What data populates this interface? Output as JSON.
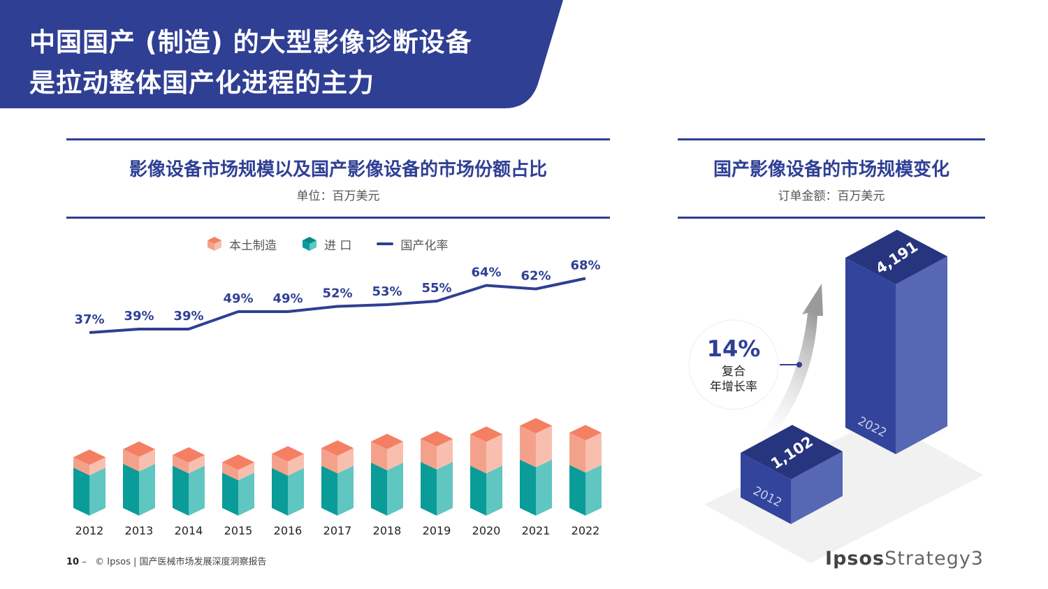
{
  "header": {
    "title_line1": "中国国产 (制造) 的大型影像诊断设备",
    "title_line2": "是拉动整体国产化进程的主力"
  },
  "left_panel": {
    "title": "影像设备市场规模以及国产影像设备的市场份额占比",
    "subtitle": "单位：百万美元"
  },
  "right_panel": {
    "title": "国产影像设备的市场规模变化",
    "subtitle": "订单金额：百万美元"
  },
  "legend": {
    "domestic": "本土制造",
    "import": "进 口",
    "rate": "国产化率"
  },
  "colors": {
    "brand_blue": "#2f3f94",
    "domestic_front": "#f4a18b",
    "domestic_side": "#f9bfae",
    "domestic_top": "#f47f63",
    "import_front": "#0a9c98",
    "import_side": "#5fc6c2",
    "line": "#2f3f94"
  },
  "chart_data": [
    {
      "type": "bar",
      "stacked": true,
      "categories": [
        "2012",
        "2013",
        "2014",
        "2015",
        "2016",
        "2017",
        "2018",
        "2019",
        "2020",
        "2021",
        "2022"
      ],
      "series": [
        {
          "name": "进 口",
          "values": [
            105,
            115,
            110,
            92,
            104,
            110,
            118,
            120,
            110,
            126,
            112
          ]
        },
        {
          "name": "本土制造",
          "values": [
            27,
            38,
            28,
            27,
            37,
            46,
            55,
            60,
            82,
            88,
            84
          ]
        }
      ],
      "line_series": {
        "name": "国产化率",
        "values": [
          37,
          39,
          39,
          49,
          49,
          52,
          53,
          55,
          64,
          62,
          68
        ],
        "labels": [
          "37%",
          "39%",
          "39%",
          "49%",
          "49%",
          "52%",
          "53%",
          "55%",
          "64%",
          "62%",
          "68%"
        ]
      },
      "title": "影像设备市场规模以及国产影像设备的市场份额占比",
      "ylabel": "单位：百万美元",
      "legend": "top"
    },
    {
      "type": "bar",
      "categories": [
        "2012",
        "2022"
      ],
      "values": [
        1102,
        4191
      ],
      "value_labels": [
        "1,102",
        "4,191"
      ],
      "title": "国产影像设备的市场规模变化",
      "annotation": {
        "value": "14%",
        "line1": "复合",
        "line2": "年增长率"
      }
    }
  ],
  "footer": {
    "page": "10",
    "dash": "–",
    "text": "© Ipsos | 国产医械市场发展深度洞察报告"
  },
  "brand": {
    "part1": "Ipsos",
    "part2": "Strategy3"
  }
}
